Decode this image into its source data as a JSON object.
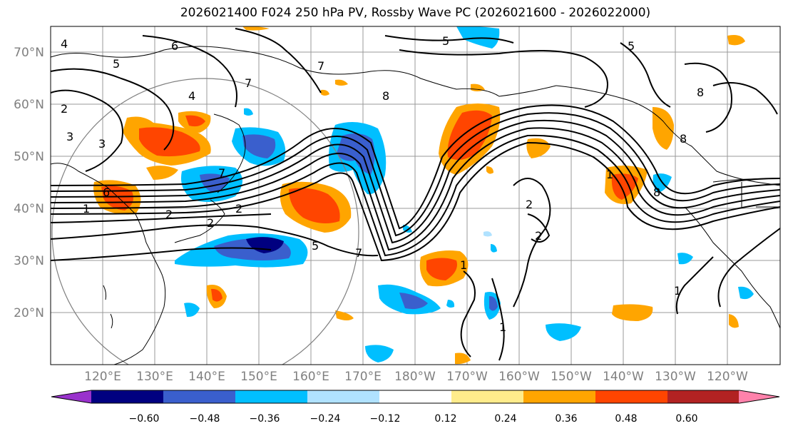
{
  "title": "2026021400 F024 250 hPa PV, Rossby Wave PC (2026021600 - 2026022000)",
  "map": {
    "lat_labels": [
      "70°N",
      "60°N",
      "50°N",
      "40°N",
      "30°N",
      "20°N"
    ],
    "lon_labels": [
      "120°E",
      "130°E",
      "140°E",
      "150°E",
      "160°E",
      "170°E",
      "180°W",
      "170°W",
      "160°W",
      "150°W",
      "140°W",
      "130°W",
      "120°W"
    ],
    "contour_labels": [
      "4",
      "6",
      "5",
      "5",
      "5",
      "7",
      "7",
      "2",
      "3",
      "3",
      "4",
      "7",
      "6",
      "1",
      "2",
      "2",
      "2",
      "5",
      "7",
      "8",
      "8",
      "8",
      "2",
      "2",
      "1",
      "1",
      "1",
      "1",
      "8"
    ]
  },
  "colorbar": {
    "ticks": [
      "−0.60",
      "−0.48",
      "−0.36",
      "−0.24",
      "−0.12",
      "0.12",
      "0.24",
      "0.36",
      "0.48",
      "0.60"
    ],
    "colors": [
      "#9932cc",
      "#000080",
      "#3a5fcd",
      "#00bfff",
      "#b0e2ff",
      "#ffffff",
      "#ffec8b",
      "#ffa500",
      "#ff4500",
      "#b22222",
      "#ff82ab"
    ]
  }
}
